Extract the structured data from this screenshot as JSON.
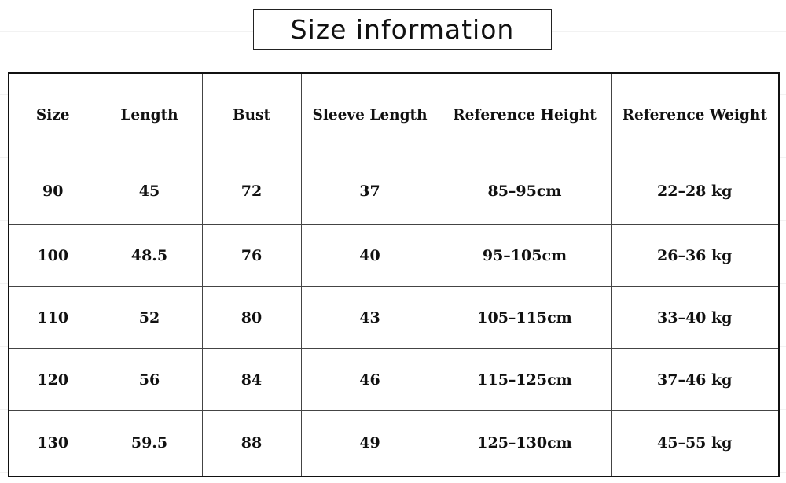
{
  "title": "Size information",
  "table": {
    "headers": [
      "Size",
      "Length",
      "Bust",
      "Sleeve Length",
      "Reference Height",
      "Reference Weight"
    ],
    "rows": [
      [
        "90",
        "45",
        "72",
        "37",
        "85–95cm",
        "22–28 kg"
      ],
      [
        "100",
        "48.5",
        "76",
        "40",
        "95–105cm",
        "26–36 kg"
      ],
      [
        "110",
        "52",
        "80",
        "43",
        "105–115cm",
        "33–40 kg"
      ],
      [
        "120",
        "56",
        "84",
        "46",
        "115–125cm",
        "37–46 kg"
      ],
      [
        "130",
        "59.5",
        "88",
        "49",
        "125–130cm",
        "45–55 kg"
      ]
    ]
  }
}
